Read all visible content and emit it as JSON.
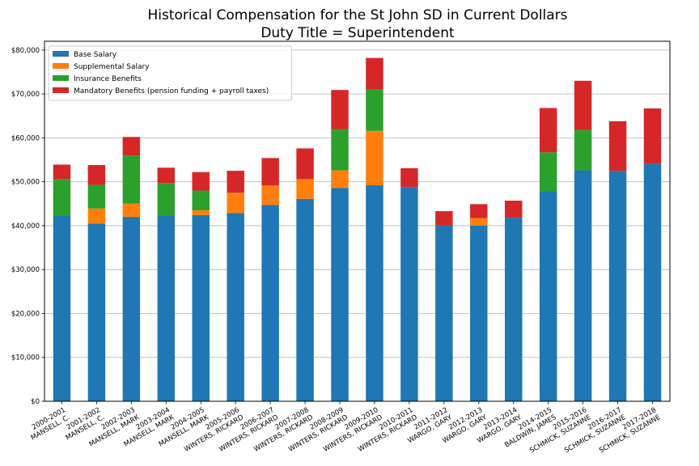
{
  "chart_data": {
    "type": "bar",
    "stacked": true,
    "title": "Historical Compensation for the St John SD in Current Dollars",
    "subtitle": "Duty Title = Superintendent",
    "xlabel": "",
    "ylabel": "",
    "ylim": [
      0,
      82000
    ],
    "yticks": [
      "$0",
      "$10,000",
      "$20,000",
      "$30,000",
      "$40,000",
      "$50,000",
      "$60,000",
      "$70,000",
      "$80,000"
    ],
    "grid": "horizontal",
    "legend_position": "top-left",
    "categories": [
      [
        "2000-2001",
        "MANSELL, C."
      ],
      [
        "2001-2002",
        "MANSELL, C."
      ],
      [
        "2002-2003",
        "MANSELL, MARK"
      ],
      [
        "2003-2004",
        "MANSELL, MARK"
      ],
      [
        "2004-2005",
        "MANSELL, MARK"
      ],
      [
        "2005-2006",
        "WINTERS, RICKARD"
      ],
      [
        "2006-2007",
        "WINTERS, RICKARD"
      ],
      [
        "2007-2008",
        "WINTERS, RICKARD"
      ],
      [
        "2008-2009",
        "WINTERS, RICKARD"
      ],
      [
        "2009-2010",
        "WINTERS, RICKARD"
      ],
      [
        "2010-2011",
        "WINTERS, RICKARD"
      ],
      [
        "2011-2012",
        "WARGO, GARY"
      ],
      [
        "2012-2013",
        "WARGO, GARY"
      ],
      [
        "2013-2014",
        "WARGO, GARY"
      ],
      [
        "2014-2015",
        "BALDWIN, JAMES"
      ],
      [
        "2015-2016",
        "SCHMICK, SUZANNE"
      ],
      [
        "2016-2017",
        "SCHMICK, SUZANNE"
      ],
      [
        "2017-2018",
        "SCHMICK, SUZANNE"
      ]
    ],
    "series": [
      {
        "name": "Base Salary",
        "color": "#1f77b4",
        "values": [
          42300,
          40500,
          42000,
          42200,
          42400,
          42900,
          44700,
          46100,
          48600,
          49200,
          48800,
          40000,
          40000,
          41800,
          47900,
          52600,
          52500,
          54100
        ]
      },
      {
        "name": "Supplemental Salary",
        "color": "#ff7f0e",
        "values": [
          0,
          3400,
          3000,
          0,
          1100,
          4600,
          4500,
          4500,
          4000,
          12400,
          0,
          0,
          1700,
          0,
          0,
          0,
          0,
          0
        ]
      },
      {
        "name": "Insurance Benefits",
        "color": "#2ca02c",
        "values": [
          8300,
          5400,
          11000,
          7500,
          4500,
          0,
          0,
          0,
          9400,
          9400,
          0,
          0,
          0,
          0,
          8800,
          9200,
          0,
          0
        ]
      },
      {
        "name": "Mandatory Benefits (pension funding + payroll taxes)",
        "color": "#d62728",
        "values": [
          3300,
          4500,
          4200,
          3500,
          4200,
          5000,
          6200,
          7000,
          8900,
          7200,
          4300,
          3300,
          3200,
          3900,
          10100,
          11200,
          11300,
          12600
        ]
      }
    ]
  }
}
